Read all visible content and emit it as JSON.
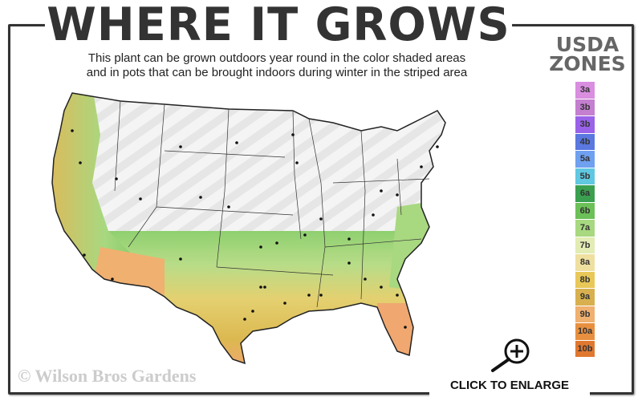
{
  "header": {
    "title": "WHERE IT GROWS",
    "subtitle_line1": "This plant can be grown outdoors year round in the color shaded areas",
    "subtitle_line2": "and in pots that can be brought indoors during winter in the striped area"
  },
  "legend": {
    "title_line1": "USDA",
    "title_line2": "ZONES",
    "zones": [
      {
        "label": "3a",
        "color": "#d98ee0"
      },
      {
        "label": "3b",
        "color": "#c47fd0"
      },
      {
        "label": "3b",
        "color": "#9a62e8"
      },
      {
        "label": "4b",
        "color": "#5a78e0"
      },
      {
        "label": "5a",
        "color": "#70a0f0"
      },
      {
        "label": "5b",
        "color": "#60c8e0"
      },
      {
        "label": "6a",
        "color": "#3aa050"
      },
      {
        "label": "6b",
        "color": "#6cc058"
      },
      {
        "label": "7a",
        "color": "#a8d880"
      },
      {
        "label": "7b",
        "color": "#e2ecb4"
      },
      {
        "label": "8a",
        "color": "#efe0a0"
      },
      {
        "label": "8b",
        "color": "#e8c858"
      },
      {
        "label": "9a",
        "color": "#d8b050"
      },
      {
        "label": "9b",
        "color": "#f0b070"
      },
      {
        "label": "10a",
        "color": "#e89040"
      },
      {
        "label": "10b",
        "color": "#e07830"
      }
    ]
  },
  "footer": {
    "copyright": "© Wilson Bros Gardens",
    "enlarge_label": "CLICK TO ENLARGE",
    "enlarge_icon": "zoom-in-icon"
  }
}
